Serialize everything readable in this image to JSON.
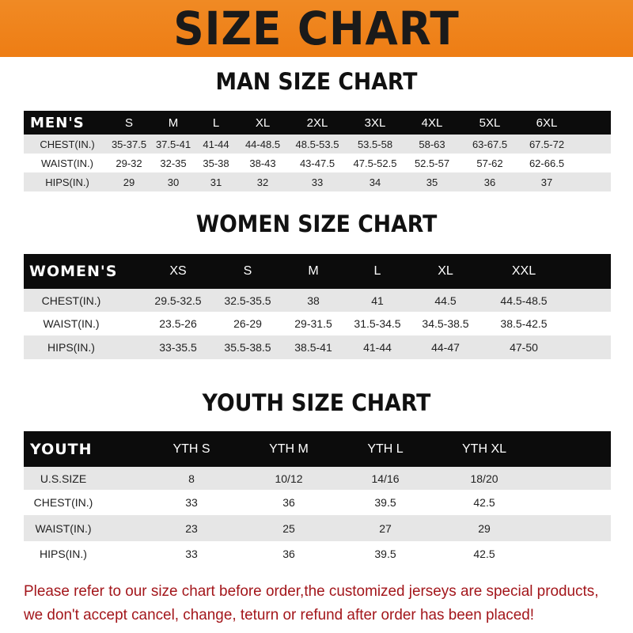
{
  "title": "SIZE CHART",
  "colors": {
    "banner": "#ee7d14",
    "header_row": "#0c0c0c",
    "stripe": "#e6e6e6",
    "note": "#a3161b"
  },
  "men": {
    "title": "MAN SIZE CHART",
    "header": [
      "MEN'S",
      "S",
      "M",
      "L",
      "XL",
      "2XL",
      "3XL",
      "4XL",
      "5XL",
      "6XL"
    ],
    "rows": [
      [
        "CHEST(IN.)",
        "35-37.5",
        "37.5-41",
        "41-44",
        "44-48.5",
        "48.5-53.5",
        "53.5-58",
        "58-63",
        "63-67.5",
        "67.5-72"
      ],
      [
        "WAIST(IN.)",
        "29-32",
        "32-35",
        "35-38",
        "38-43",
        "43-47.5",
        "47.5-52.5",
        "52.5-57",
        "57-62",
        "62-66.5"
      ],
      [
        "HIPS(IN.)",
        "29",
        "30",
        "31",
        "32",
        "33",
        "34",
        "35",
        "36",
        "37"
      ]
    ]
  },
  "women": {
    "title": "WOMEN SIZE CHART",
    "header": [
      "WOMEN'S",
      "XS",
      "S",
      "M",
      "L",
      "XL",
      "XXL"
    ],
    "rows": [
      [
        "CHEST(IN.)",
        "29.5-32.5",
        "32.5-35.5",
        "38",
        "41",
        "44.5",
        "44.5-48.5"
      ],
      [
        "WAIST(IN.)",
        "23.5-26",
        "26-29",
        "29-31.5",
        "31.5-34.5",
        "34.5-38.5",
        "38.5-42.5"
      ],
      [
        "HIPS(IN.)",
        "33-35.5",
        "35.5-38.5",
        "38.5-41",
        "41-44",
        "44-47",
        "47-50"
      ]
    ]
  },
  "youth": {
    "title": "YOUTH SIZE CHART",
    "header": [
      "YOUTH",
      "YTH S",
      "YTH M",
      "YTH L",
      "YTH XL"
    ],
    "rows": [
      [
        "U.S.SIZE",
        "8",
        "10/12",
        "14/16",
        "18/20"
      ],
      [
        "CHEST(IN.)",
        "33",
        "36",
        "39.5",
        "42.5"
      ],
      [
        "WAIST(IN.)",
        "23",
        "25",
        "27",
        "29"
      ],
      [
        "HIPS(IN.)",
        "33",
        "36",
        "39.5",
        "42.5"
      ]
    ]
  },
  "note": {
    "line1": "Please refer to our size chart before order,the customized jerseys are special products,",
    "line2": "we don't accept cancel, change, teturn or refund after order has been placed!"
  }
}
